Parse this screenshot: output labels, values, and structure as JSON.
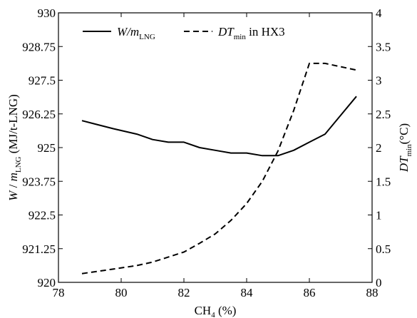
{
  "chart_data": {
    "type": "line",
    "title": "",
    "xlabel": "CH",
    "xlabel_sub": "4",
    "xlabel_unit": " (%)",
    "ylabel_left": {
      "main": "W",
      "sep": " / ",
      "m": "m",
      "sub": "LNG",
      "unit": " (MJ/t-LNG)"
    },
    "ylabel_right": {
      "main": "DT",
      "sub": "min",
      "unit": "(°C)"
    },
    "xlim": [
      78,
      88
    ],
    "ylim_left": [
      920,
      930
    ],
    "ylim_right": [
      0,
      4
    ],
    "x_ticks": [
      "78",
      "80",
      "82",
      "84",
      "86",
      "88"
    ],
    "y_left_ticks": [
      "920",
      "921.25",
      "922.5",
      "923.75",
      "925",
      "926.25",
      "927.5",
      "928.75",
      "930"
    ],
    "y_right_ticks": [
      "0",
      "0.5",
      "1",
      "1.5",
      "2",
      "2.5",
      "3",
      "3.5",
      "4"
    ],
    "grid": false,
    "legend_position": "top",
    "series": [
      {
        "name": "W/m_LNG",
        "legend_main": "W/m",
        "legend_sub": "LNG",
        "axis": "left",
        "style": "solid",
        "x": [
          78.75,
          79.25,
          79.75,
          80.5,
          81,
          81.5,
          82,
          82.5,
          83,
          83.5,
          84,
          84.5,
          85,
          85.5,
          86,
          86.5,
          87,
          87.5
        ],
        "y": [
          926.0,
          925.85,
          925.7,
          925.5,
          925.3,
          925.2,
          925.2,
          925.0,
          924.9,
          924.8,
          924.8,
          924.7,
          924.7,
          924.9,
          925.2,
          925.5,
          926.2,
          926.9
        ]
      },
      {
        "name": "DT_min in HX3",
        "legend_main": "DT",
        "legend_sub": "min",
        "legend_rest": " in HX3",
        "axis": "right",
        "style": "dashed",
        "x": [
          78.75,
          79.5,
          80.5,
          81,
          82,
          82.5,
          83,
          83.5,
          84,
          84.5,
          85,
          85.5,
          86,
          86.5,
          87,
          87.5
        ],
        "y": [
          0.13,
          0.18,
          0.25,
          0.3,
          0.45,
          0.58,
          0.72,
          0.92,
          1.17,
          1.5,
          1.95,
          2.55,
          3.25,
          3.25,
          3.2,
          3.15
        ]
      }
    ]
  }
}
